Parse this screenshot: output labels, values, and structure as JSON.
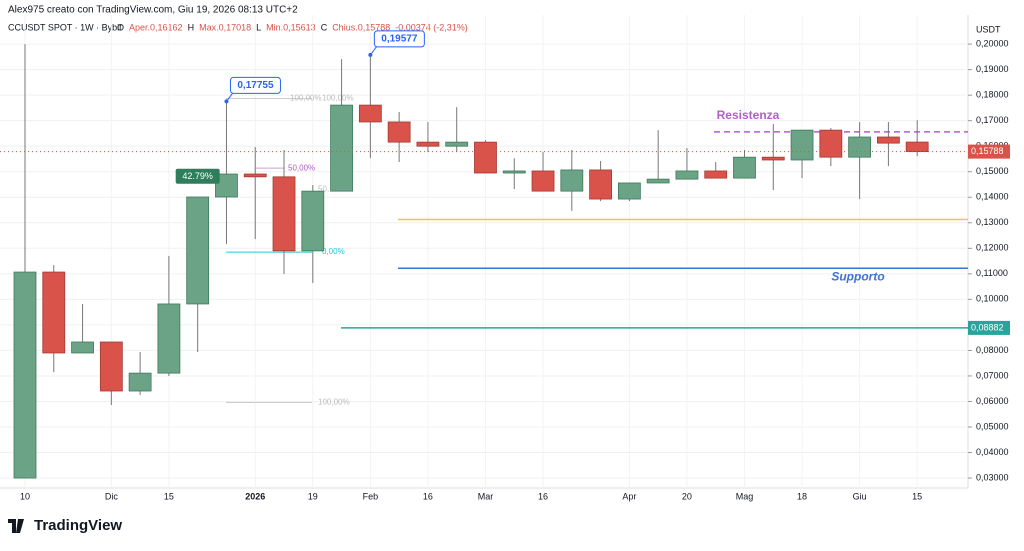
{
  "header": "Alex975 creato con TradingView.com, Giu 19, 2026 08:13 UTC+2",
  "legend": {
    "symbol": "CCUSDT SPOT · 1W · Bybit",
    "items": [
      "O",
      "Aper.0,16162",
      "H",
      "Max.0,17018",
      "L",
      "Min.0,15613",
      "C",
      "Chius.0,15788",
      "-0,00374 (-2,31%)"
    ]
  },
  "footer": "TradingView",
  "chart_data": {
    "type": "candlestick",
    "y_axis_label": "USDT",
    "categories": [
      "10",
      null,
      null,
      "Dic",
      null,
      "15",
      null,
      null,
      "2026",
      null,
      "19",
      null,
      "Feb",
      null,
      "16",
      null,
      "Mar",
      null,
      "16",
      null,
      null,
      "Apr",
      null,
      "20",
      null,
      "Mag",
      null,
      "18",
      null,
      "Giu",
      null,
      "15"
    ],
    "up_color": "#6aa386",
    "down_color": "#d9534a",
    "series": [
      {
        "name": "open",
        "values": [
          0.03,
          0.1107,
          0.079,
          0.0833,
          0.0641,
          0.0711,
          0.0982,
          0.1401,
          0.1491,
          0.148,
          0.119,
          0.1424,
          0.1761,
          0.1695,
          0.1616,
          0.16,
          0.1616,
          0.1495,
          0.1503,
          0.1424,
          0.1507,
          0.1393,
          0.1456,
          0.1471,
          0.1503,
          0.1475,
          0.1557,
          0.1546,
          0.1663,
          0.1557,
          0.1636,
          0.16162
        ]
      },
      {
        "name": "high",
        "values": [
          0.2,
          0.1134,
          0.0982,
          0.0833,
          0.0794,
          0.117,
          0.1402,
          0.17755,
          0.1597,
          0.1585,
          0.1448,
          0.1941,
          0.19577,
          0.1734,
          0.1695,
          0.1753,
          0.1624,
          0.1553,
          0.1577,
          0.1585,
          0.1542,
          0.1456,
          0.1663,
          0.1593,
          0.1538,
          0.1585,
          0.1687,
          0.1663,
          0.1671,
          0.1695,
          0.1695,
          0.17018
        ]
      },
      {
        "name": "low",
        "values": [
          0.03,
          0.0715,
          0.079,
          0.0586,
          0.0625,
          0.07,
          0.0794,
          0.1217,
          0.1236,
          0.1099,
          0.1064,
          0.1424,
          0.1553,
          0.1538,
          0.1577,
          0.1577,
          0.1495,
          0.1432,
          0.1424,
          0.1346,
          0.1385,
          0.1385,
          0.1456,
          0.1471,
          0.1475,
          0.1475,
          0.1428,
          0.1475,
          0.1522,
          0.1393,
          0.1522,
          0.15613
        ]
      },
      {
        "name": "close",
        "values": [
          0.1107,
          0.079,
          0.0833,
          0.0641,
          0.0711,
          0.0982,
          0.1401,
          0.1491,
          0.148,
          0.119,
          0.1424,
          0.1761,
          0.1695,
          0.1616,
          0.16,
          0.1616,
          0.1495,
          0.1503,
          0.1424,
          0.1507,
          0.1393,
          0.1456,
          0.1471,
          0.1503,
          0.1475,
          0.1557,
          0.1546,
          0.1663,
          0.1557,
          0.1636,
          0.1612,
          0.15788
        ]
      }
    ],
    "ylim": [
      0.0261,
      0.2114
    ],
    "yticks": [
      {
        "value": 0.03,
        "label": "0,03000"
      },
      {
        "value": 0.04,
        "label": "0,04000"
      },
      {
        "value": 0.05,
        "label": "0,05000"
      },
      {
        "value": 0.06,
        "label": "0,06000"
      },
      {
        "value": 0.07,
        "label": "0,07000"
      },
      {
        "value": 0.08,
        "label": "0,08000"
      },
      {
        "value": 0.09,
        "label": "0,09000"
      },
      {
        "value": 0.1,
        "label": "0,10000"
      },
      {
        "value": 0.11,
        "label": "0,11000"
      },
      {
        "value": 0.12,
        "label": "0,12000"
      },
      {
        "value": 0.13,
        "label": "0,13000"
      },
      {
        "value": 0.14,
        "label": "0,14000"
      },
      {
        "value": 0.15,
        "label": "0,15000"
      },
      {
        "value": 0.16,
        "label": "0,16000"
      },
      {
        "value": 0.17,
        "label": "0,17000"
      },
      {
        "value": 0.18,
        "label": "0,18000"
      },
      {
        "value": 0.19,
        "label": "0,19000"
      },
      {
        "value": 0.2,
        "label": "0,20000"
      }
    ],
    "grid": true,
    "high_callouts": [
      {
        "value": 0.17755,
        "label": "0,17755"
      },
      {
        "value": 0.19577,
        "label": "0,19577"
      }
    ],
    "levels": [
      {
        "value": 0.1656,
        "color": "#b05fc9",
        "label": "Resistenza"
      },
      {
        "value": 0.1313,
        "color": "#e6c84a"
      },
      {
        "value": 0.1122,
        "color": "#3b73d9",
        "label": "Supporto"
      },
      {
        "value": 0.08882,
        "color": "#26a69a",
        "label": "0,08882"
      }
    ],
    "last_price": {
      "value": 0.15788,
      "label": "0,15788"
    },
    "fib_texts": [
      "100,00%",
      "100,00%",
      "50,00%",
      "50,",
      "0,00%",
      "100,00%"
    ],
    "badge": "42.79%"
  }
}
